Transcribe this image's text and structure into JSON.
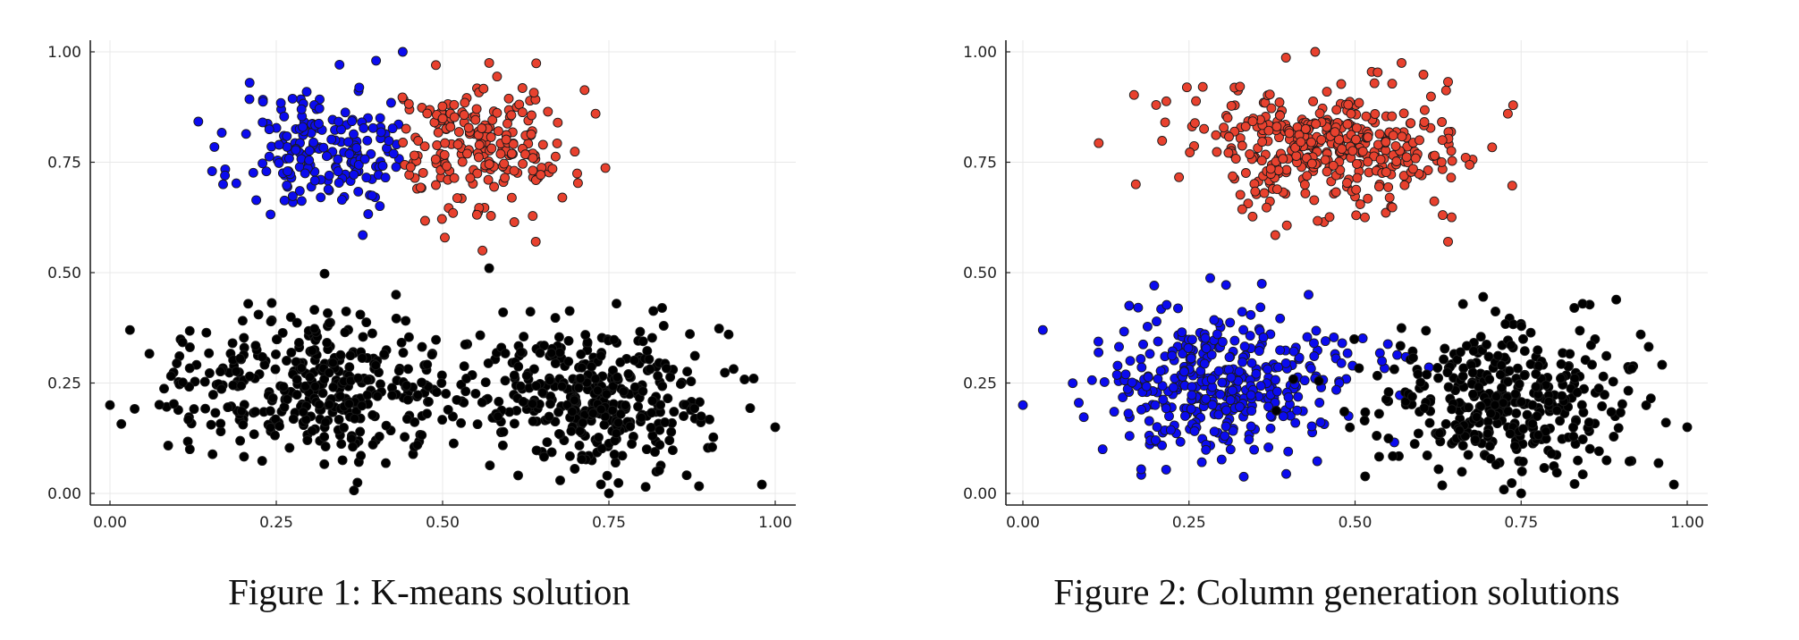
{
  "figure1": {
    "caption": "Figure 1: K-means solution"
  },
  "figure2": {
    "caption": "Figure 2: Column generation solutions"
  },
  "colors": {
    "blue": "#0b0bef",
    "red": "#e8412e",
    "black": "#000000",
    "axis": "#222222",
    "grid": "#e8e8e8"
  },
  "chart_data": [
    {
      "type": "scatter",
      "xlim": [
        0,
        1
      ],
      "ylim": [
        0,
        1
      ],
      "xticks": [
        "0.00",
        "0.25",
        "0.50",
        "0.75",
        "1.00"
      ],
      "yticks": [
        "0.00",
        "0.25",
        "0.50",
        "0.75",
        "1.00"
      ],
      "grid": true,
      "series": [
        {
          "color": "blue",
          "cluster": {
            "cx": 0.33,
            "cy": 0.78,
            "sx": 0.07,
            "sy": 0.07,
            "n": 190,
            "xmax": 0.44
          },
          "extremes": [
            [
              0.44,
              1.0
            ],
            [
              0.4,
              0.98
            ],
            [
              0.38,
              0.585
            ],
            [
              0.17,
              0.7
            ],
            [
              0.21,
              0.93
            ]
          ]
        },
        {
          "color": "red",
          "cluster": {
            "cx": 0.55,
            "cy": 0.79,
            "sx": 0.07,
            "sy": 0.07,
            "n": 210,
            "xmin": 0.43
          },
          "extremes": [
            [
              0.73,
              0.86
            ],
            [
              0.57,
              0.975
            ],
            [
              0.56,
              0.55
            ],
            [
              0.64,
              0.57
            ],
            [
              0.68,
              0.67
            ]
          ]
        },
        {
          "color": "black",
          "cluster": {
            "cx": 0.3,
            "cy": 0.25,
            "sx": 0.1,
            "sy": 0.08,
            "n": 380
          },
          "extremes": [
            [
              0.0,
              0.2
            ],
            [
              0.03,
              0.37
            ],
            [
              0.43,
              0.45
            ],
            [
              0.12,
              0.1
            ]
          ]
        },
        {
          "color": "black",
          "cluster": {
            "cx": 0.73,
            "cy": 0.21,
            "sx": 0.1,
            "sy": 0.08,
            "n": 380
          },
          "extremes": [
            [
              1.0,
              0.15
            ],
            [
              0.98,
              0.02
            ],
            [
              0.75,
              0.0
            ],
            [
              0.93,
              0.36
            ],
            [
              0.83,
              0.42
            ]
          ]
        }
      ]
    },
    {
      "type": "scatter",
      "xlim": [
        0,
        1
      ],
      "ylim": [
        0,
        1
      ],
      "xticks": [
        "0.00",
        "0.25",
        "0.50",
        "0.75",
        "1.00"
      ],
      "yticks": [
        "0.00",
        "0.25",
        "0.50",
        "0.75",
        "1.00"
      ],
      "grid": true,
      "series": [
        {
          "color": "red",
          "cluster": {
            "cx": 0.45,
            "cy": 0.79,
            "sx": 0.1,
            "sy": 0.07,
            "n": 400
          },
          "extremes": [
            [
              0.44,
              1.0
            ],
            [
              0.73,
              0.86
            ],
            [
              0.17,
              0.7
            ],
            [
              0.38,
              0.585
            ],
            [
              0.64,
              0.57
            ],
            [
              0.57,
              0.975
            ]
          ]
        },
        {
          "color": "blue",
          "cluster": {
            "cx": 0.3,
            "cy": 0.25,
            "sx": 0.1,
            "sy": 0.08,
            "n": 380
          },
          "extremes": [
            [
              0.0,
              0.2
            ],
            [
              0.03,
              0.37
            ],
            [
              0.43,
              0.45
            ],
            [
              0.12,
              0.1
            ]
          ]
        },
        {
          "color": "black",
          "cluster": {
            "cx": 0.73,
            "cy": 0.21,
            "sx": 0.1,
            "sy": 0.08,
            "n": 380
          },
          "extremes": [
            [
              1.0,
              0.15
            ],
            [
              0.98,
              0.02
            ],
            [
              0.75,
              0.0
            ],
            [
              0.93,
              0.36
            ],
            [
              0.83,
              0.42
            ]
          ]
        }
      ]
    }
  ]
}
